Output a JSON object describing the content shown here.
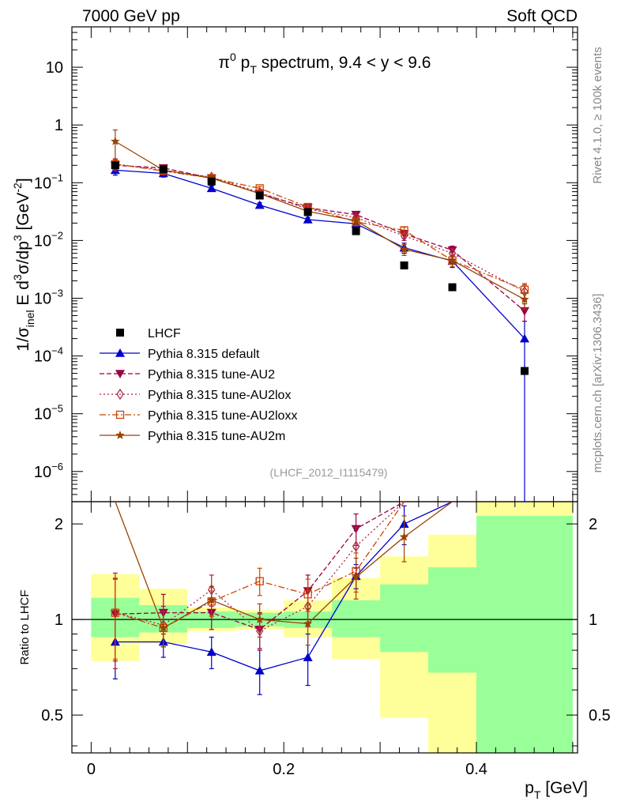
{
  "header": {
    "energy_label": "7000 GeV pp",
    "category_label": "Soft QCD"
  },
  "side_labels": {
    "rivet": "Rivet 4.1.0, ≥ 100k events",
    "mcplots": "mcplots.cern.ch [arXiv:1306.3436]"
  },
  "colors": {
    "data": "#000000",
    "default": "#0000cc",
    "au2": "#990044",
    "au2lox": "#aa2244",
    "au2loxx": "#cc4400",
    "au2m": "#994400",
    "band_inner": "#99ff99",
    "band_outer": "#ffff99"
  },
  "chart_data": {
    "type": "line",
    "title": {
      "pi": "π",
      "pi_sup": "0",
      "p": " p",
      "p_sub": "T",
      "rest": " spectrum, 9.4 < y < 9.6"
    },
    "analysis_tag": "(LHCF_2012_I1115479)",
    "ylabel": {
      "p1": "1/σ",
      "sub1": "inel",
      "p2": " E d",
      "sup1": "3",
      "p3": "σ/dp",
      "sup2": "3",
      "p4": " [GeV",
      "sup3": "-2",
      "p5": "]"
    },
    "xlabel": {
      "p": "p",
      "sub": "T",
      "unit": " [GeV]"
    },
    "ratio_ylabel": "Ratio to LHCF",
    "xlim": [
      -0.02,
      0.505
    ],
    "main_ylim": [
      3e-07,
      50
    ],
    "ratio_ylim": [
      0.38,
      2.35
    ],
    "x_ticks": [
      {
        "v": 0,
        "label": "0"
      },
      {
        "v": 0.2,
        "label": "0.2"
      },
      {
        "v": 0.4,
        "label": "0.4"
      }
    ],
    "main_y_ticks": [
      {
        "v": 10,
        "base": "10",
        "exp": ""
      },
      {
        "v": 1,
        "base": "1",
        "exp": ""
      },
      {
        "v": 0.1,
        "base": "10",
        "exp": "−1"
      },
      {
        "v": 0.01,
        "base": "10",
        "exp": "−2"
      },
      {
        "v": 0.001,
        "base": "10",
        "exp": "−3"
      },
      {
        "v": 0.0001,
        "base": "10",
        "exp": "−4"
      },
      {
        "v": 1e-05,
        "base": "10",
        "exp": "−5"
      },
      {
        "v": 1e-06,
        "base": "10",
        "exp": "−6"
      }
    ],
    "ratio_y_ticks": [
      {
        "v": 0.5,
        "label": "0.5"
      },
      {
        "v": 1,
        "label": "1"
      },
      {
        "v": 2,
        "label": "2"
      }
    ],
    "bins": [
      {
        "lo": 0.0,
        "hi": 0.05,
        "inner": [
          0.88,
          1.17
        ],
        "outer": [
          0.74,
          1.39
        ]
      },
      {
        "lo": 0.05,
        "hi": 0.1,
        "inner": [
          0.91,
          1.11
        ],
        "outer": [
          0.84,
          1.25
        ]
      },
      {
        "lo": 0.1,
        "hi": 0.15,
        "inner": [
          0.94,
          1.06
        ],
        "outer": [
          0.92,
          1.09
        ]
      },
      {
        "lo": 0.15,
        "hi": 0.2,
        "inner": [
          0.95,
          1.05
        ],
        "outer": [
          0.93,
          1.07
        ]
      },
      {
        "lo": 0.2,
        "hi": 0.25,
        "inner": [
          0.94,
          1.06
        ],
        "outer": [
          0.88,
          1.15
        ]
      },
      {
        "lo": 0.25,
        "hi": 0.3,
        "inner": [
          0.88,
          1.15
        ],
        "outer": [
          0.75,
          1.35
        ]
      },
      {
        "lo": 0.3,
        "hi": 0.35,
        "inner": [
          0.79,
          1.29
        ],
        "outer": [
          0.49,
          1.58
        ]
      },
      {
        "lo": 0.35,
        "hi": 0.4,
        "inner": [
          0.68,
          1.46
        ],
        "outer": [
          0.38,
          1.85
        ]
      },
      {
        "lo": 0.4,
        "hi": 0.5,
        "inner": [
          0.38,
          2.12
        ],
        "outer": [
          0.38,
          2.35
        ]
      }
    ],
    "data": {
      "name": "LHCF",
      "x": [
        0.025,
        0.075,
        0.125,
        0.175,
        0.225,
        0.275,
        0.325,
        0.375,
        0.45
      ],
      "y": [
        0.2,
        0.17,
        0.105,
        0.06,
        0.031,
        0.0145,
        0.0037,
        0.00155,
        5.5e-05
      ]
    },
    "series": [
      {
        "name": "Pythia 8.315 default",
        "color_key": "default",
        "marker": "triangle-up",
        "dash": "",
        "x": [
          0.025,
          0.075,
          0.125,
          0.175,
          0.225,
          0.275,
          0.325,
          0.375,
          0.45
        ],
        "y": [
          0.165,
          0.145,
          0.08,
          0.041,
          0.023,
          0.0195,
          0.0075,
          0.0044,
          0.0002
        ],
        "err_lo": [
          0.03,
          0.02,
          0.008,
          0.004,
          0.002,
          0.002,
          0.0015,
          0.001,
          0.0002
        ],
        "err_hi": [
          0.03,
          0.02,
          0.008,
          0.004,
          0.002,
          0.002,
          0.0015,
          0.001,
          0.0002
        ],
        "ratio": [
          0.85,
          0.85,
          0.79,
          0.69,
          0.76,
          1.37,
          2.0,
          2.35,
          null
        ],
        "ratio_err": [
          0.2,
          0.09,
          0.09,
          0.11,
          0.14,
          0.12,
          0.28,
          0,
          0
        ]
      },
      {
        "name": "Pythia 8.315 tune-AU2",
        "color_key": "au2",
        "marker": "triangle-down",
        "dash": "6,3",
        "x": [
          0.025,
          0.075,
          0.125,
          0.175,
          0.225,
          0.275,
          0.325,
          0.375,
          0.45
        ],
        "y": [
          0.2,
          0.18,
          0.12,
          0.065,
          0.037,
          0.028,
          0.013,
          0.0068,
          0.0006
        ],
        "err_lo": [
          0.04,
          0.02,
          0.01,
          0.005,
          0.003,
          0.003,
          0.002,
          0.0012,
          0.0002
        ],
        "err_hi": [
          0.04,
          0.02,
          0.01,
          0.005,
          0.003,
          0.003,
          0.002,
          0.0012,
          0.0002
        ],
        "ratio": [
          1.04,
          1.05,
          1.05,
          0.93,
          1.23,
          1.93,
          2.35,
          null,
          null
        ],
        "ratio_err": [
          0.3,
          0.15,
          0.12,
          0.12,
          0.15,
          0.22,
          0,
          0,
          0
        ]
      },
      {
        "name": "Pythia 8.315 tune-AU2lox",
        "color_key": "au2lox",
        "marker": "diamond-open",
        "dash": "2,3",
        "x": [
          0.025,
          0.075,
          0.125,
          0.175,
          0.225,
          0.275,
          0.325,
          0.375,
          0.45
        ],
        "y": [
          0.21,
          0.165,
          0.125,
          0.068,
          0.035,
          0.025,
          0.012,
          0.006,
          0.0013
        ],
        "err_lo": [
          0.05,
          0.02,
          0.01,
          0.005,
          0.003,
          0.003,
          0.002,
          0.0012,
          0.0004
        ],
        "err_hi": [
          0.05,
          0.02,
          0.01,
          0.005,
          0.003,
          0.003,
          0.002,
          0.0012,
          0.0004
        ],
        "ratio": [
          1.05,
          0.96,
          1.24,
          0.92,
          1.1,
          1.7,
          2.35,
          null,
          null
        ],
        "ratio_err": [
          0.35,
          0.14,
          0.14,
          0.12,
          0.15,
          0.25,
          0,
          0,
          0
        ]
      },
      {
        "name": "Pythia 8.315 tune-AU2loxx",
        "color_key": "au2loxx",
        "marker": "square-open",
        "dash": "8,3,2,3",
        "x": [
          0.025,
          0.075,
          0.125,
          0.175,
          0.225,
          0.275,
          0.325,
          0.375,
          0.45
        ],
        "y": [
          0.21,
          0.16,
          0.12,
          0.08,
          0.038,
          0.021,
          0.015,
          0.0045,
          0.0014
        ],
        "err_lo": [
          0.04,
          0.02,
          0.01,
          0.006,
          0.003,
          0.003,
          0.002,
          0.001,
          0.0004
        ],
        "err_hi": [
          0.04,
          0.02,
          0.01,
          0.006,
          0.003,
          0.003,
          0.002,
          0.001,
          0.0004
        ],
        "ratio": [
          1.05,
          0.94,
          1.14,
          1.32,
          1.2,
          1.42,
          2.35,
          null,
          null
        ],
        "ratio_err": [
          0.3,
          0.12,
          0.12,
          0.13,
          0.14,
          0.2,
          0,
          0,
          0
        ]
      },
      {
        "name": "Pythia 8.315 tune-AU2m",
        "color_key": "au2m",
        "marker": "star",
        "dash": "",
        "x": [
          0.025,
          0.075,
          0.125,
          0.175,
          0.225,
          0.275,
          0.325,
          0.375,
          0.45
        ],
        "y": [
          0.52,
          0.165,
          0.12,
          0.065,
          0.032,
          0.022,
          0.007,
          0.0045,
          0.00095
        ],
        "err_lo": [
          0.3,
          0.02,
          0.01,
          0.005,
          0.003,
          0.003,
          0.0015,
          0.001,
          0.0003
        ],
        "err_hi": [
          0.3,
          0.02,
          0.01,
          0.005,
          0.003,
          0.003,
          0.0015,
          0.001,
          0.0003
        ],
        "ratio": [
          2.6,
          0.94,
          1.15,
          1.0,
          0.97,
          1.36,
          1.82,
          2.35,
          null
        ],
        "ratio_err": [
          0.9,
          0.12,
          0.12,
          0.12,
          0.14,
          0.2,
          0.3,
          0,
          0
        ]
      }
    ]
  }
}
